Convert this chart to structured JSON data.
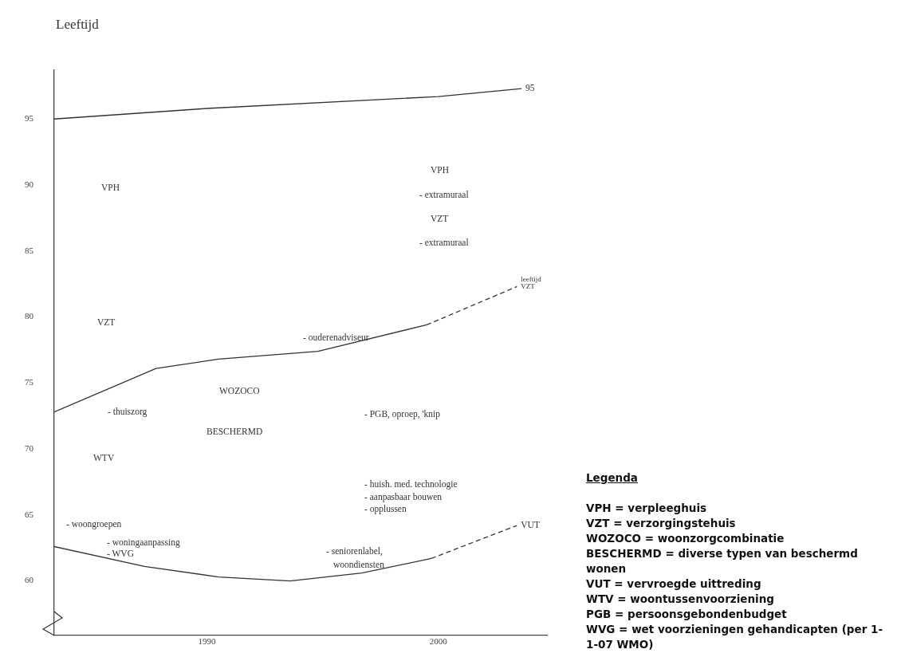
{
  "chart_data": {
    "type": "line",
    "ylabel": "Leeftijd",
    "xlim": [
      1983.4,
      2004.7
    ],
    "ylim": [
      55.9,
      98.7
    ],
    "xticks": [
      1990,
      2000
    ],
    "yticks": [
      60,
      65,
      70,
      75,
      80,
      85,
      90,
      95
    ],
    "grid": false,
    "legend": false,
    "marker": "none",
    "series": [
      {
        "name": "95",
        "color": "#333333",
        "line_style": "solid",
        "x": [
          1983.4,
          1990,
          2000,
          2003.6
        ],
        "values": [
          95.0,
          95.8,
          96.7,
          97.3
        ]
      },
      {
        "color": "#333333",
        "line_style": "solid",
        "x": [
          1983.4,
          1987.8,
          1990.5,
          1994.8,
          1999.5
        ],
        "values": [
          72.8,
          76.1,
          76.8,
          77.4,
          79.4
        ]
      },
      {
        "name": "leeftijd\nVZT",
        "color": "#333333",
        "line_style": "dashed",
        "x": [
          1999.5,
          2003.4
        ],
        "values": [
          79.4,
          82.3
        ]
      },
      {
        "color": "#333333",
        "line_style": "solid",
        "x": [
          1983.4,
          1987.3,
          1990.5,
          1993.6,
          1996.7,
          1999.7
        ],
        "values": [
          62.6,
          61.1,
          60.3,
          60.0,
          60.6,
          61.7
        ]
      },
      {
        "name": "VUT",
        "color": "#333333",
        "line_style": "dashed",
        "x": [
          1999.7,
          2003.4
        ],
        "values": [
          61.7,
          64.2
        ]
      }
    ],
    "annotations": [
      "VPH",
      "VZT",
      "VPH",
      "- extramuraal",
      "VZT",
      "- extramuraal",
      "- ouderenadviseur",
      "WOZOCO",
      "- thuiszorg",
      "- PGB, oproep, 'knip",
      "BESCHERMD",
      "WTV",
      "- huish. med. technologie",
      "- aanpasbaar bouwen",
      "- opplussen",
      "- woongroepen",
      "- woningaanpassing",
      "- WVG",
      "- seniorenlabel,",
      "woondiensten",
      "Legenda",
      "VPH = verpleeghuis",
      "VZT = verzorgingstehuis",
      "WOZOCO = woonzorgcombinatie",
      "BESCHERMD = diverse typen van beschermd wonen",
      "VUT = vervroegde uittreding",
      "WTV = woontussenvoorziening",
      "PGB = persoonsgebondenbudget",
      "WVG = wet voorzieningen gehandicapten (per 1-1-07 WMO)"
    ]
  }
}
